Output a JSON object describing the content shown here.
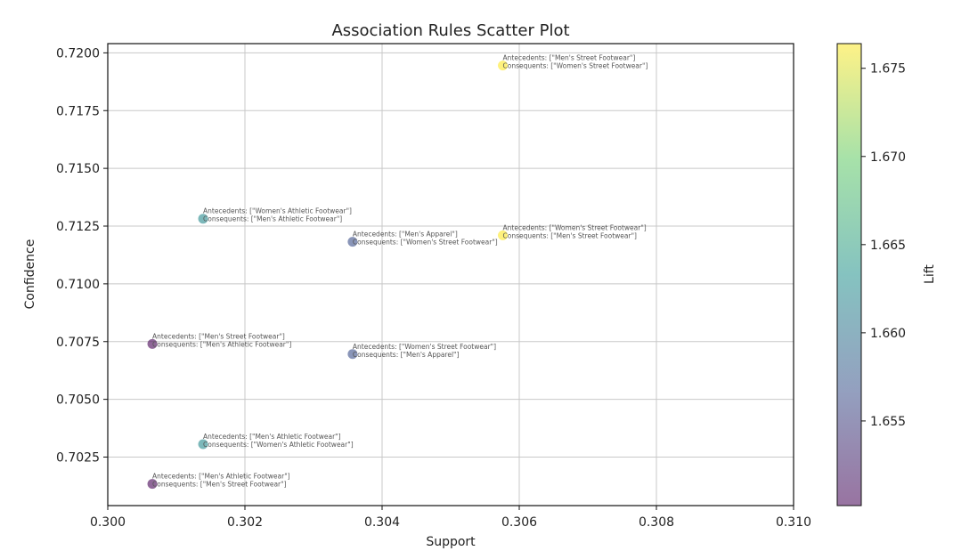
{
  "chart_data": {
    "type": "scatter",
    "title": "Association Rules Scatter Plot",
    "xlabel": "Support",
    "ylabel": "Confidence",
    "xlim": [
      0.3,
      0.31
    ],
    "ylim": [
      0.7004,
      0.7204
    ],
    "x_ticks": [
      "0.300",
      "0.302",
      "0.304",
      "0.306",
      "0.308",
      "0.310"
    ],
    "y_ticks": [
      "0.7025",
      "0.7050",
      "0.7075",
      "0.7100",
      "0.7125",
      "0.7150",
      "0.7175",
      "0.7200"
    ],
    "grid": true,
    "colorbar": {
      "label": "Lift",
      "range": [
        1.6502,
        1.6764
      ],
      "ticks": [
        "1.655",
        "1.660",
        "1.665",
        "1.670",
        "1.675"
      ],
      "colormap": "viridis"
    },
    "points": [
      {
        "x": 0.30576,
        "y": 0.71945,
        "lift": 1.6764,
        "antecedent": "Antecedents: [\"Men's Street Footwear\"]",
        "consequent": "Consequents: [\"Women's Street Footwear\"]"
      },
      {
        "x": 0.30576,
        "y": 0.7121,
        "lift": 1.6764,
        "antecedent": "Antecedents: [\"Women's Street Footwear\"]",
        "consequent": "Consequents: [\"Men's Street Footwear\"]"
      },
      {
        "x": 0.30139,
        "y": 0.71282,
        "lift": 1.6625,
        "antecedent": "Antecedents: [\"Women's Athletic Footwear\"]",
        "consequent": "Consequents: [\"Men's Athletic Footwear\"]"
      },
      {
        "x": 0.30139,
        "y": 0.70306,
        "lift": 1.6625,
        "antecedent": "Antecedents: [\"Men's Athletic Footwear\"]",
        "consequent": "Consequents: [\"Women's Athletic Footwear\"]"
      },
      {
        "x": 0.30357,
        "y": 0.71182,
        "lift": 1.6565,
        "antecedent": "Antecedents: [\"Men's Apparel\"]",
        "consequent": "Consequents: [\"Women's Street Footwear\"]"
      },
      {
        "x": 0.30357,
        "y": 0.70696,
        "lift": 1.6565,
        "antecedent": "Antecedents: [\"Women's Street Footwear\"]",
        "consequent": "Consequents: [\"Men's Apparel\"]"
      },
      {
        "x": 0.30065,
        "y": 0.7074,
        "lift": 1.6502,
        "antecedent": "Antecedents: [\"Men's Street Footwear\"]",
        "consequent": "Consequents: [\"Men's Athletic Footwear\"]"
      },
      {
        "x": 0.30065,
        "y": 0.70134,
        "lift": 1.6502,
        "antecedent": "Antecedents: [\"Men's Athletic Footwear\"]",
        "consequent": "Consequents: [\"Men's Street Footwear\"]"
      }
    ]
  }
}
